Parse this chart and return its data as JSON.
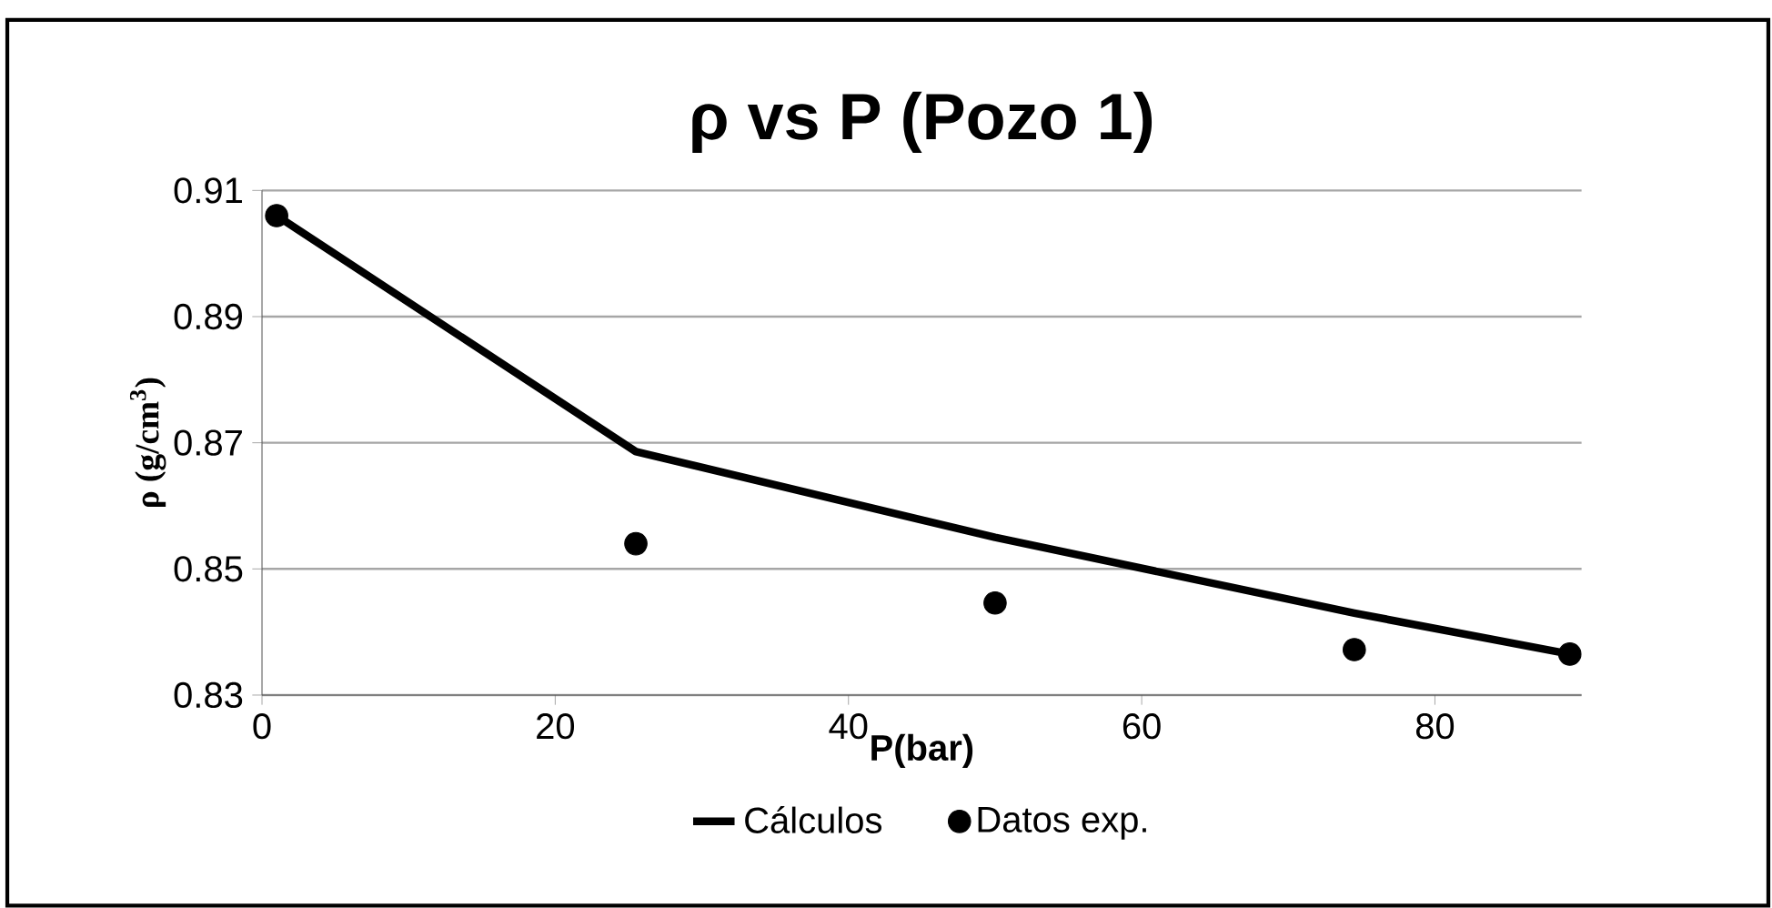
{
  "chart_data": {
    "type": "line",
    "title": "ρ vs P  (Pozo 1)",
    "xlabel": "P(bar)",
    "ylabel": "ρ (g/cm$^{3}$)",
    "xlim": [
      0,
      90
    ],
    "xticks": [
      0,
      20,
      40,
      60,
      80
    ],
    "ylim": [
      0.83,
      0.91
    ],
    "yticks": [
      0.83,
      0.85,
      0.87,
      0.89,
      0.91
    ],
    "grid": "y",
    "legend": "bottom",
    "series": [
      {
        "name": "Cálculos",
        "color": "#000000",
        "marker": "none",
        "line_style": "solid",
        "x": [
          1,
          25.5,
          50,
          74.5,
          89.2
        ],
        "values": [
          0.906,
          0.8686,
          0.855,
          0.843,
          0.8365
        ]
      },
      {
        "name": "Datos exp.",
        "type": "scatter",
        "color": "#000000",
        "marker": "circle",
        "x": [
          1,
          25.5,
          50,
          74.5,
          89.2
        ],
        "values": [
          0.906,
          0.854,
          0.8446,
          0.8372,
          0.8365
        ]
      }
    ]
  }
}
